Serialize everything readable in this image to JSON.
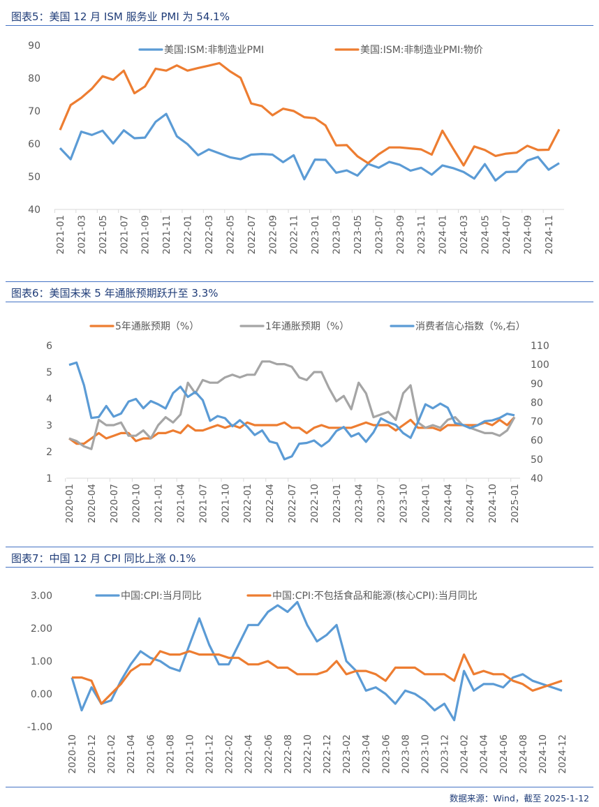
{
  "titles": [
    "图表5：美国 12 月 ISM 服务业 PMI 为 54.1%",
    "图表6：美国未来 5 年通胀预期跃升至 3.3%",
    "图表7：中国 12 月 CPI 同比上涨 0.1%"
  ],
  "footer": "数据来源：Wind，截至 2025-1-12",
  "colors": {
    "blue": "#5B9BD5",
    "orange": "#ED7D31",
    "gray": "#A5A5A5",
    "title": "#1F3C78",
    "rule": "#4472C4"
  },
  "chart_data": [
    {
      "type": "line",
      "title": "图表5：美国 12 月 ISM 服务业 PMI 为 54.1%",
      "ylim": [
        40,
        90
      ],
      "yticks": [
        "40",
        "50",
        "60",
        "70",
        "80",
        "90"
      ],
      "grid": false,
      "legend": "top",
      "x": [
        "2021-01",
        "2021-02",
        "2021-03",
        "2021-04",
        "2021-05",
        "2021-06",
        "2021-07",
        "2021-08",
        "2021-09",
        "2021-10",
        "2021-11",
        "2021-12",
        "2022-01",
        "2022-02",
        "2022-03",
        "2022-04",
        "2022-05",
        "2022-06",
        "2022-07",
        "2022-08",
        "2022-09",
        "2022-10",
        "2022-11",
        "2022-12",
        "2023-01",
        "2023-02",
        "2023-03",
        "2023-04",
        "2023-05",
        "2023-06",
        "2023-07",
        "2023-08",
        "2023-09",
        "2023-10",
        "2023-11",
        "2023-12",
        "2024-01",
        "2024-02",
        "2024-03",
        "2024-04",
        "2024-05",
        "2024-06",
        "2024-07",
        "2024-08",
        "2024-09",
        "2024-10",
        "2024-11",
        "2024-12"
      ],
      "series": [
        {
          "name": "美国:ISM:非制造业PMI",
          "color": "#5B9BD5",
          "values": [
            58.7,
            55.3,
            63.7,
            62.7,
            64.0,
            60.1,
            64.1,
            61.7,
            61.9,
            66.7,
            69.1,
            62.3,
            59.9,
            56.5,
            58.3,
            57.1,
            55.9,
            55.3,
            56.7,
            56.9,
            56.7,
            54.4,
            56.5,
            49.2,
            55.2,
            55.1,
            51.2,
            51.9,
            50.3,
            53.9,
            52.7,
            54.5,
            53.6,
            51.8,
            52.7,
            50.6,
            53.4,
            52.6,
            51.4,
            49.4,
            53.8,
            48.8,
            51.4,
            51.5,
            54.9,
            56.0,
            52.1,
            54.1
          ]
        },
        {
          "name": "美国:ISM:非制造业PMI:物价",
          "color": "#ED7D31",
          "values": [
            64.2,
            71.8,
            74.0,
            76.8,
            80.6,
            79.5,
            82.3,
            75.4,
            77.5,
            82.9,
            82.3,
            83.9,
            82.3,
            83.1,
            83.8,
            84.6,
            82.1,
            80.1,
            72.3,
            71.5,
            68.7,
            70.7,
            70.0,
            68.1,
            67.8,
            65.6,
            59.5,
            59.6,
            56.2,
            54.1,
            56.8,
            58.9,
            58.9,
            58.6,
            58.3,
            56.7,
            64.0,
            58.6,
            53.4,
            59.2,
            58.1,
            56.3,
            57.0,
            57.3,
            59.4,
            58.1,
            58.2,
            64.4
          ]
        }
      ]
    },
    {
      "type": "line",
      "title": "图表6：美国未来 5 年通胀预期跃升至 3.3%",
      "ylim": [
        1,
        6
      ],
      "yticks": [
        "1",
        "2",
        "3",
        "4",
        "5",
        "6"
      ],
      "y2lim": [
        40,
        110
      ],
      "y2ticks": [
        "40",
        "50",
        "60",
        "70",
        "80",
        "90",
        "100",
        "110"
      ],
      "grid": false,
      "legend": "top",
      "x": [
        "2020-01",
        "2020-02",
        "2020-03",
        "2020-04",
        "2020-05",
        "2020-06",
        "2020-07",
        "2020-08",
        "2020-09",
        "2020-10",
        "2020-11",
        "2020-12",
        "2021-01",
        "2021-02",
        "2021-03",
        "2021-04",
        "2021-05",
        "2021-06",
        "2021-07",
        "2021-08",
        "2021-09",
        "2021-10",
        "2021-11",
        "2021-12",
        "2022-01",
        "2022-02",
        "2022-03",
        "2022-04",
        "2022-05",
        "2022-06",
        "2022-07",
        "2022-08",
        "2022-09",
        "2022-10",
        "2022-11",
        "2022-12",
        "2023-01",
        "2023-02",
        "2023-03",
        "2023-04",
        "2023-05",
        "2023-06",
        "2023-07",
        "2023-08",
        "2023-09",
        "2023-10",
        "2023-11",
        "2023-12",
        "2024-01",
        "2024-02",
        "2024-03",
        "2024-04",
        "2024-05",
        "2024-06",
        "2024-07",
        "2024-08",
        "2024-09",
        "2024-10",
        "2024-11",
        "2024-12",
        "2025-01"
      ],
      "series": [
        {
          "name": "5年通胀预期（%）",
          "color": "#ED7D31",
          "axis": "left",
          "values": [
            2.5,
            2.3,
            2.3,
            2.5,
            2.7,
            2.5,
            2.6,
            2.7,
            2.7,
            2.4,
            2.5,
            2.5,
            2.7,
            2.7,
            2.8,
            2.7,
            3.0,
            2.8,
            2.8,
            2.9,
            3.0,
            2.9,
            3.0,
            2.9,
            3.1,
            3.0,
            3.0,
            3.0,
            3.0,
            3.1,
            2.9,
            2.9,
            2.7,
            2.9,
            3.0,
            2.9,
            2.9,
            2.9,
            2.9,
            3.0,
            3.1,
            3.0,
            3.0,
            3.0,
            2.8,
            3.0,
            3.2,
            2.9,
            2.9,
            2.9,
            2.8,
            3.0,
            3.0,
            3.0,
            3.0,
            3.0,
            3.1,
            3.0,
            3.2,
            3.0,
            3.3
          ]
        },
        {
          "name": "1年通胀预期（%）",
          "color": "#A5A5A5",
          "axis": "left",
          "values": [
            2.5,
            2.4,
            2.2,
            2.1,
            3.2,
            3.0,
            3.0,
            3.1,
            2.6,
            2.6,
            2.8,
            2.5,
            3.0,
            3.3,
            3.1,
            3.4,
            4.6,
            4.2,
            4.7,
            4.6,
            4.6,
            4.8,
            4.9,
            4.8,
            4.9,
            4.9,
            5.4,
            5.4,
            5.3,
            5.3,
            5.2,
            4.8,
            4.7,
            5.0,
            5.0,
            4.4,
            3.9,
            4.1,
            3.6,
            4.6,
            4.2,
            3.3,
            3.4,
            3.5,
            3.2,
            4.2,
            4.5,
            3.1,
            2.9,
            3.0,
            2.9,
            3.2,
            3.3,
            3.0,
            2.9,
            2.8,
            2.7,
            2.7,
            2.6,
            2.8,
            3.3
          ]
        },
        {
          "name": "消费者信心指数（%,右）",
          "color": "#5B9BD5",
          "axis": "right",
          "values": [
            99.8,
            101.0,
            89.1,
            71.8,
            72.3,
            78.1,
            72.5,
            74.1,
            80.4,
            81.8,
            76.9,
            80.7,
            79.0,
            76.8,
            84.9,
            88.3,
            82.9,
            85.5,
            81.2,
            70.3,
            72.8,
            71.7,
            67.4,
            70.6,
            67.2,
            62.8,
            65.2,
            59.4,
            58.4,
            50.0,
            51.5,
            58.2,
            58.6,
            59.9,
            56.8,
            59.7,
            64.9,
            67.0,
            62.0,
            63.7,
            59.2,
            64.2,
            71.6,
            69.5,
            68.1,
            63.8,
            61.3,
            69.7,
            79.0,
            76.9,
            79.4,
            77.2,
            69.1,
            68.2,
            66.4,
            67.9,
            70.1,
            70.5,
            71.8,
            74.0,
            73.2
          ]
        }
      ]
    },
    {
      "type": "line",
      "title": "图表7：中国 12 月 CPI 同比上涨 0.1%",
      "ylim": [
        -1,
        3
      ],
      "yticks": [
        "-1.00",
        "0.00",
        "1.00",
        "2.00",
        "3.00"
      ],
      "grid": false,
      "legend": "top",
      "x": [
        "2020-10",
        "2020-11",
        "2020-12",
        "2021-01",
        "2021-02",
        "2021-03",
        "2021-04",
        "2021-05",
        "2021-06",
        "2021-07",
        "2021-08",
        "2021-09",
        "2021-10",
        "2021-11",
        "2021-12",
        "2022-01",
        "2022-02",
        "2022-03",
        "2022-04",
        "2022-05",
        "2022-06",
        "2022-07",
        "2022-08",
        "2022-09",
        "2022-10",
        "2022-11",
        "2022-12",
        "2023-01",
        "2023-02",
        "2023-03",
        "2023-04",
        "2023-05",
        "2023-06",
        "2023-07",
        "2023-08",
        "2023-09",
        "2023-10",
        "2023-11",
        "2023-12",
        "2024-01",
        "2024-02",
        "2024-03",
        "2024-04",
        "2024-05",
        "2024-06",
        "2024-07",
        "2024-08",
        "2024-09",
        "2024-10",
        "2024-11",
        "2024-12"
      ],
      "series": [
        {
          "name": "中国:CPI:当月同比",
          "color": "#5B9BD5",
          "values": [
            0.5,
            -0.5,
            0.2,
            -0.3,
            -0.2,
            0.4,
            0.9,
            1.3,
            1.1,
            1.0,
            0.8,
            0.7,
            1.5,
            2.3,
            1.5,
            0.9,
            0.9,
            1.5,
            2.1,
            2.1,
            2.5,
            2.7,
            2.5,
            2.8,
            2.1,
            1.6,
            1.8,
            2.1,
            1.0,
            0.7,
            0.1,
            0.2,
            0.0,
            -0.3,
            0.1,
            0.0,
            -0.2,
            -0.5,
            -0.3,
            -0.8,
            0.7,
            0.1,
            0.3,
            0.3,
            0.2,
            0.5,
            0.6,
            0.4,
            0.3,
            0.2,
            0.1
          ]
        },
        {
          "name": "中国:CPI:不包括食品和能源(核心CPI):当月同比",
          "color": "#ED7D31",
          "values": [
            0.5,
            0.5,
            0.4,
            -0.3,
            0.0,
            0.3,
            0.7,
            0.9,
            0.9,
            1.3,
            1.2,
            1.2,
            1.3,
            1.2,
            1.2,
            1.2,
            1.1,
            1.1,
            0.9,
            0.9,
            1.0,
            0.8,
            0.8,
            0.6,
            0.6,
            0.6,
            0.7,
            1.0,
            0.6,
            0.7,
            0.7,
            0.6,
            0.4,
            0.8,
            0.8,
            0.8,
            0.6,
            0.6,
            0.6,
            0.4,
            1.2,
            0.6,
            0.7,
            0.6,
            0.6,
            0.4,
            0.3,
            0.1,
            0.2,
            0.3,
            0.4
          ]
        }
      ]
    }
  ]
}
